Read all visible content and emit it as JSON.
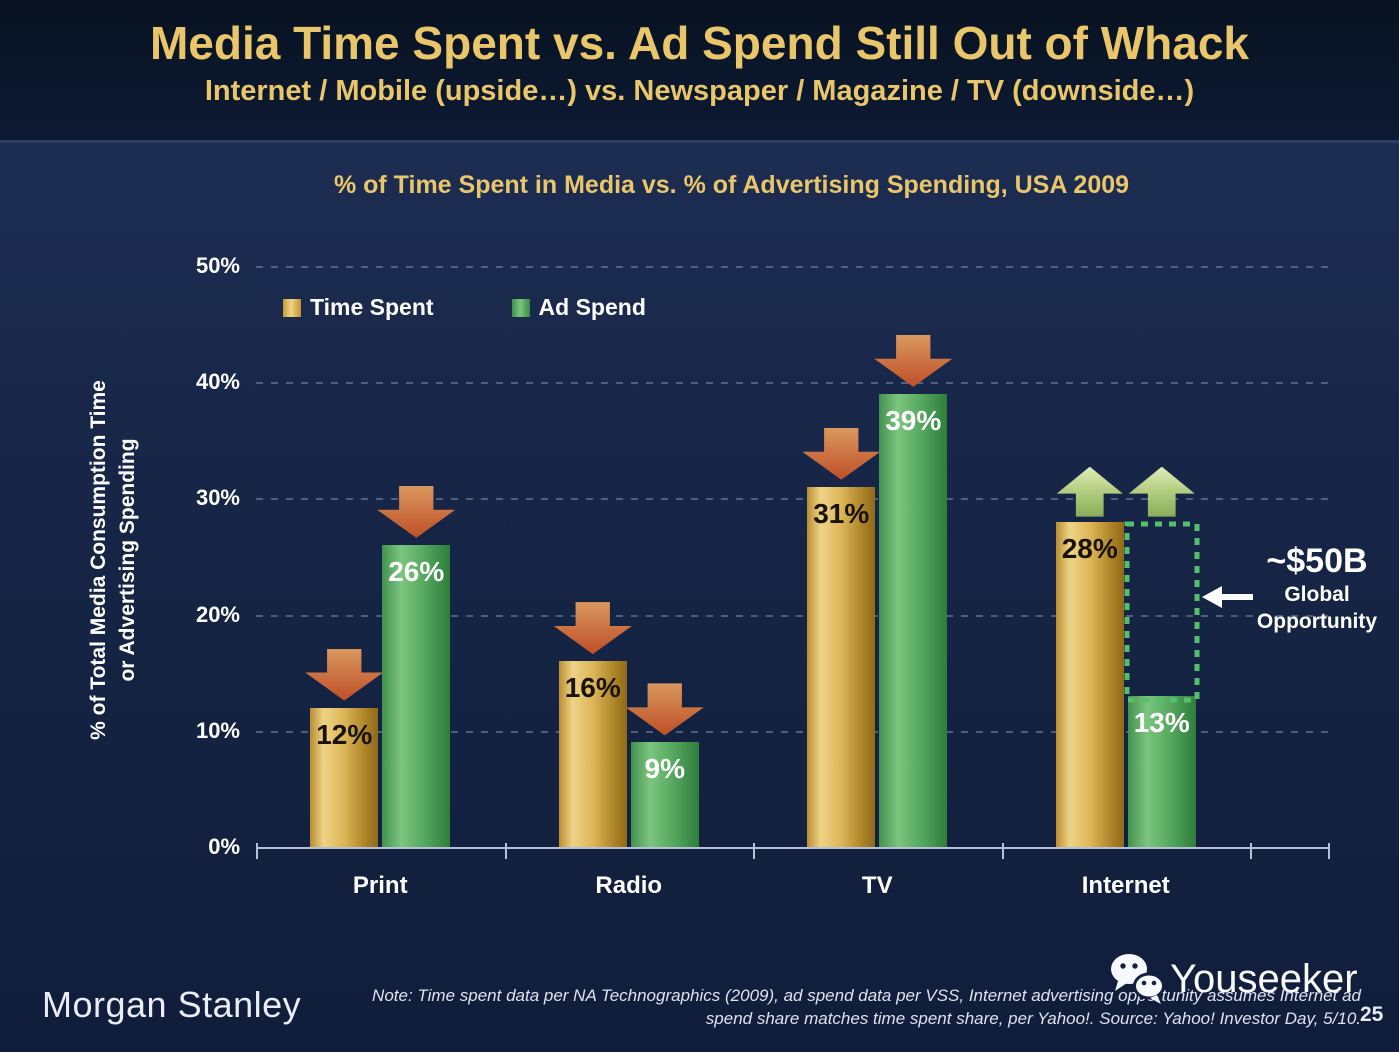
{
  "header": {
    "title": "Media Time Spent vs. Ad Spend Still Out of Whack",
    "subtitle": "Internet / Mobile (upside…) vs. Newspaper / Magazine / TV (downside…)"
  },
  "chart_data": {
    "type": "bar",
    "title": "% of Time Spent in Media vs. % of Advertising Spending, USA 2009",
    "categories": [
      "Print",
      "Radio",
      "TV",
      "Internet"
    ],
    "series": [
      {
        "name": "Time Spent",
        "values": [
          12,
          16,
          31,
          28
        ],
        "color": "#D9A93C"
      },
      {
        "name": "Ad Spend",
        "values": [
          26,
          9,
          39,
          13
        ],
        "color": "#4CAE69"
      }
    ],
    "value_suffix": "%",
    "ylabel_line1": "% of Total Media Consumption Time",
    "ylabel_line2": "or Advertising Spending",
    "ylim": [
      0,
      50
    ],
    "yticks": [
      0,
      10,
      20,
      30,
      40,
      50
    ],
    "grid": "dashed horizontal lines",
    "legend_position": "top-left",
    "trend_arrows": [
      [
        "down",
        "down"
      ],
      [
        "down",
        "down"
      ],
      [
        "down",
        "down"
      ],
      [
        "up",
        "up"
      ]
    ],
    "opportunity_box": {
      "category_index": 3,
      "top_value": 28,
      "bottom_value": 13,
      "border_color": "#54C06C"
    },
    "annotation": {
      "value": "~$50B",
      "line1": "Global",
      "line2": "Opportunity"
    },
    "colors": {
      "time_spent_bar": "#D9A93C",
      "ad_spend_bar": "#4CAE69",
      "down_arrow": "#C4582E",
      "up_arrow": "#A9C573",
      "title_gold": "#EAC66A",
      "background_navy": "#15254A"
    }
  },
  "footer": {
    "logo": "Morgan Stanley",
    "note_line1": "Note: Time spent data per NA Technographics (2009), ad spend data per VSS, Internet advertising opportunity assumes Internet ad",
    "note_line2": "spend share matches time spent share, per Yahoo!. Source: Yahoo! Investor Day, 5/10.",
    "watermark": "Youseeker",
    "page_number": "25"
  }
}
